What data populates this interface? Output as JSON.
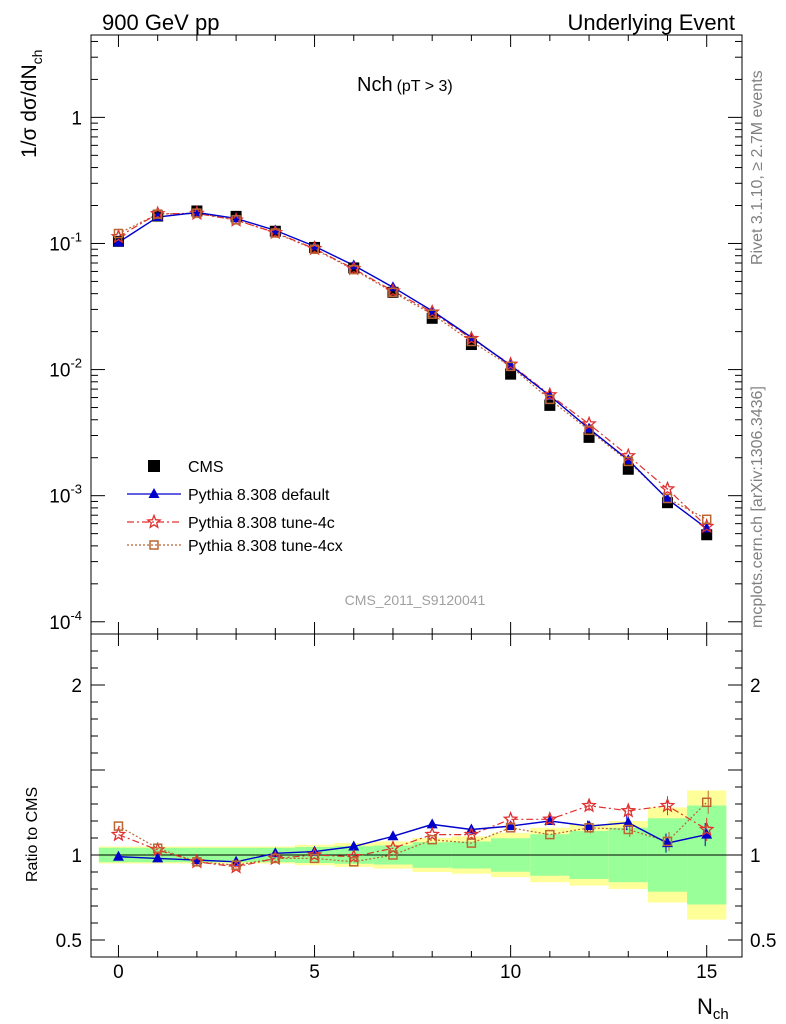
{
  "header": {
    "left": "900 GeV pp",
    "right": "Underlying Event"
  },
  "side_labels": {
    "rivet": "Rivet 3.1.10, ≥ 2.7M events",
    "mcplots": "mcplots.cern.ch [arXiv:1306.3436]"
  },
  "chart_data": {
    "type": "scatter",
    "title_main": "Nch",
    "title_sub": "(pT >  3)",
    "analysis_id": "CMS_2011_S9120041",
    "xlabel_main": "N",
    "xlabel_sub": "ch",
    "ylabel": "1/σ dσ/dN",
    "ylabel_sub": "ch",
    "ratio_ylabel": "Ratio to CMS",
    "xlim": [
      -0.7,
      15.9
    ],
    "ylim": [
      8e-05,
      4.5
    ],
    "yscale": "log",
    "ratio_ylim": [
      0.4,
      2.3
    ],
    "x_ticks": [
      0,
      5,
      10,
      15
    ],
    "y_ticks": [
      {
        "v": 0.0001,
        "base": "10",
        "exp": "-4"
      },
      {
        "v": 0.001,
        "base": "10",
        "exp": "-3"
      },
      {
        "v": 0.01,
        "base": "10",
        "exp": "-2"
      },
      {
        "v": 0.1,
        "base": "10",
        "exp": "-1"
      },
      {
        "v": 1,
        "base": "1",
        "exp": ""
      }
    ],
    "ratio_ticks": [
      {
        "v": 0.5,
        "label": "0.5"
      },
      {
        "v": 1,
        "label": "1"
      },
      {
        "v": 2,
        "label": "2"
      }
    ],
    "x": [
      0,
      1,
      2,
      3,
      4,
      5,
      6,
      7,
      8,
      9,
      10,
      11,
      12,
      13,
      14,
      15
    ],
    "series": [
      {
        "name": "CMS",
        "color": "#000000",
        "marker": "square",
        "values": [
          0.104,
          0.165,
          0.181,
          0.164,
          0.125,
          0.093,
          0.064,
          0.041,
          0.0255,
          0.0158,
          0.0092,
          0.0052,
          0.0029,
          0.00162,
          0.00088,
          0.00049
        ],
        "ratio": [
          1,
          1,
          1,
          1,
          1,
          1,
          1,
          1,
          1,
          1,
          1,
          1,
          1,
          1,
          1,
          1
        ],
        "band_stat": [
          0.02,
          0.02,
          0.02,
          0.02,
          0.02,
          0.02,
          0.02,
          0.02,
          0.03,
          0.03,
          0.04,
          0.05,
          0.06,
          0.07,
          0.09,
          0.12
        ],
        "band_total": [
          0.05,
          0.05,
          0.05,
          0.05,
          0.05,
          0.06,
          0.07,
          0.08,
          0.1,
          0.11,
          0.13,
          0.16,
          0.18,
          0.2,
          0.28,
          0.38
        ]
      },
      {
        "name": "Pythia 8.308 default",
        "color": "#0000cc",
        "marker": "triangle",
        "values": [
          0.102,
          0.162,
          0.176,
          0.158,
          0.127,
          0.095,
          0.067,
          0.045,
          0.0292,
          0.018,
          0.0108,
          0.0062,
          0.0034,
          0.00192,
          0.00094,
          0.00055
        ],
        "ratio": [
          0.99,
          0.98,
          0.97,
          0.96,
          1.01,
          1.02,
          1.05,
          1.11,
          1.18,
          1.15,
          1.17,
          1.2,
          1.17,
          1.19,
          1.07,
          1.12
        ]
      },
      {
        "name": "Pythia 8.308 tune-4c",
        "color": "#e03030",
        "marker": "star",
        "values": [
          0.113,
          0.172,
          0.173,
          0.153,
          0.122,
          0.091,
          0.063,
          0.042,
          0.0285,
          0.0176,
          0.011,
          0.0063,
          0.0037,
          0.00207,
          0.00113,
          0.00057
        ],
        "ratio": [
          1.12,
          1.03,
          0.96,
          0.93,
          0.98,
          1.0,
          0.99,
          1.04,
          1.12,
          1.12,
          1.21,
          1.21,
          1.29,
          1.26,
          1.29,
          1.15
        ]
      },
      {
        "name": "Pythia 8.308 tune-4cx",
        "color": "#bb6633",
        "marker": "open-square",
        "values": [
          0.12,
          0.171,
          0.174,
          0.154,
          0.121,
          0.09,
          0.062,
          0.041,
          0.0275,
          0.0167,
          0.0106,
          0.0058,
          0.0033,
          0.00187,
          0.00095,
          0.00065
        ],
        "ratio": [
          1.17,
          1.04,
          0.96,
          0.94,
          0.98,
          0.98,
          0.96,
          1.0,
          1.09,
          1.07,
          1.16,
          1.12,
          1.16,
          1.15,
          1.08,
          1.31
        ]
      }
    ]
  }
}
